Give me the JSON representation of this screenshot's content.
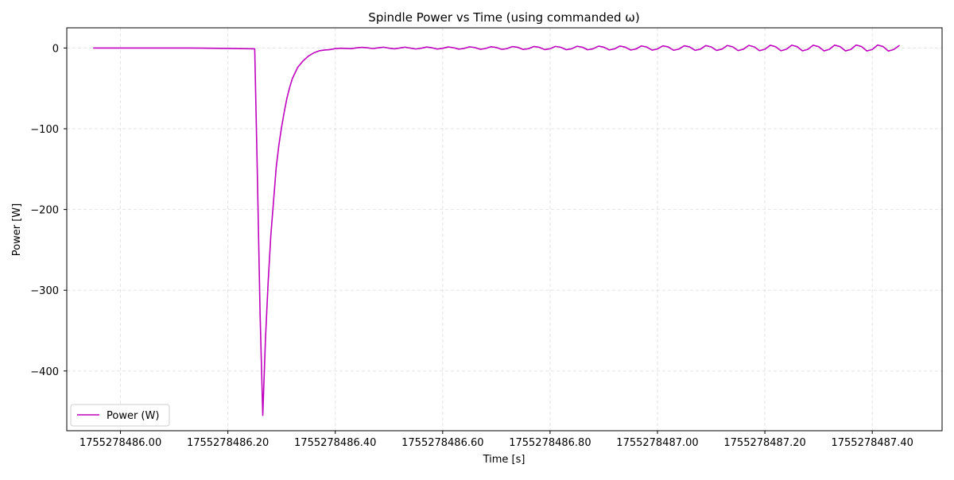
{
  "chart_data": {
    "type": "line",
    "title": "Spindle Power vs Time (using commanded ω)",
    "xlabel": "Time [s]",
    "ylabel": "Power [W]",
    "xlim": [
      1755278485.9,
      1755278487.53
    ],
    "ylim": [
      -474,
      25
    ],
    "xticks": [
      1755278486.0,
      1755278486.2,
      1755278486.4,
      1755278486.6,
      1755278486.8,
      1755278487.0,
      1755278487.2,
      1755278487.4
    ],
    "xtick_labels": [
      "1755278486.00",
      "1755278486.20",
      "1755278486.40",
      "1755278486.60",
      "1755278486.80",
      "1755278487.00",
      "1755278487.20",
      "1755278487.40"
    ],
    "yticks": [
      0,
      -100,
      -200,
      -300,
      -400
    ],
    "ytick_labels": [
      "0",
      "−100",
      "−200",
      "−300",
      "−400"
    ],
    "grid": true,
    "legend_position": "lower-left",
    "series": [
      {
        "name": "Power (W)",
        "color": "#bf00bf",
        "x": [
          1755278485.95,
          1755278486.05,
          1755278486.13,
          1755278486.2,
          1755278486.25,
          1755278486.255,
          1755278486.26,
          1755278486.265,
          1755278486.27,
          1755278486.275,
          1755278486.28,
          1755278486.285,
          1755278486.29,
          1755278486.295,
          1755278486.3,
          1755278486.305,
          1755278486.31,
          1755278486.315,
          1755278486.32,
          1755278486.325,
          1755278486.33,
          1755278486.335,
          1755278486.34,
          1755278486.35,
          1755278486.36,
          1755278486.37,
          1755278486.38,
          1755278486.39,
          1755278486.4,
          1755278486.41,
          1755278486.42,
          1755278486.43,
          1755278486.44,
          1755278486.45,
          1755278486.46,
          1755278486.47,
          1755278486.48,
          1755278486.49,
          1755278486.5,
          1755278486.51,
          1755278486.52,
          1755278486.53,
          1755278486.54,
          1755278486.55,
          1755278486.56,
          1755278486.57,
          1755278486.58,
          1755278486.59,
          1755278486.6,
          1755278486.61,
          1755278486.62,
          1755278486.63,
          1755278486.64,
          1755278486.65,
          1755278486.66,
          1755278486.67,
          1755278486.68,
          1755278486.69,
          1755278486.7,
          1755278486.71,
          1755278486.72,
          1755278486.73,
          1755278486.74,
          1755278486.75,
          1755278486.76,
          1755278486.77,
          1755278486.78,
          1755278486.79,
          1755278486.8,
          1755278486.81,
          1755278486.82,
          1755278486.83,
          1755278486.84,
          1755278486.85,
          1755278486.86,
          1755278486.87,
          1755278486.88,
          1755278486.89,
          1755278486.9,
          1755278486.91,
          1755278486.92,
          1755278486.93,
          1755278486.94,
          1755278486.95,
          1755278486.96,
          1755278486.97,
          1755278486.98,
          1755278486.99,
          1755278487.0,
          1755278487.01,
          1755278487.02,
          1755278487.03,
          1755278487.04,
          1755278487.05,
          1755278487.06,
          1755278487.07,
          1755278487.08,
          1755278487.09,
          1755278487.1,
          1755278487.11,
          1755278487.12,
          1755278487.13,
          1755278487.14,
          1755278487.15,
          1755278487.16,
          1755278487.17,
          1755278487.18,
          1755278487.19,
          1755278487.2,
          1755278487.21,
          1755278487.22,
          1755278487.23,
          1755278487.24,
          1755278487.25,
          1755278487.26,
          1755278487.27,
          1755278487.28,
          1755278487.29,
          1755278487.3,
          1755278487.31,
          1755278487.32,
          1755278487.33,
          1755278487.34,
          1755278487.35,
          1755278487.36,
          1755278487.37,
          1755278487.38,
          1755278487.39,
          1755278487.4,
          1755278487.41,
          1755278487.42,
          1755278487.43,
          1755278487.44,
          1755278487.45
        ],
        "y": [
          0,
          0,
          0,
          -0.5,
          -1,
          -160,
          -330,
          -455,
          -360,
          -290,
          -232,
          -190,
          -148,
          -120,
          -98,
          -79,
          -62,
          -49,
          -38,
          -31,
          -24,
          -20,
          -16,
          -10,
          -6,
          -3.5,
          -2.5,
          -2,
          -0.8,
          -0.3,
          -0.5,
          -0.8,
          0.2,
          0.8,
          0.2,
          -0.7,
          0.2,
          1.0,
          -0.2,
          -1.0,
          0.0,
          1.0,
          -0.2,
          -1.2,
          -0.3,
          1.2,
          0.3,
          -1.3,
          -0.4,
          1.3,
          0.4,
          -1.4,
          -0.5,
          1.5,
          0.5,
          -1.6,
          -0.6,
          1.6,
          0.6,
          -1.7,
          -0.7,
          1.8,
          0.8,
          -1.8,
          -0.8,
          1.9,
          0.8,
          -2.0,
          -0.9,
          2.0,
          0.9,
          -2.1,
          -1.0,
          2.2,
          1.0,
          -2.2,
          -1.0,
          2.3,
          1.1,
          -2.4,
          -1.1,
          2.4,
          1.1,
          -2.5,
          -1.2,
          2.6,
          1.2,
          -2.6,
          -1.2,
          2.7,
          1.3,
          -2.8,
          -1.3,
          2.8,
          1.3,
          -2.9,
          -1.4,
          3.0,
          1.4,
          -3.0,
          -1.4,
          3.1,
          1.5,
          -3.2,
          -1.5,
          3.2,
          1.5,
          -3.3,
          -1.6,
          3.4,
          1.6,
          -3.4,
          -1.6,
          3.5,
          1.7,
          -3.5,
          -1.7,
          3.5,
          1.7,
          -3.6,
          -1.7,
          3.6,
          1.7,
          -3.6,
          -1.8,
          3.7,
          1.8,
          -3.7,
          -1.8,
          3.7,
          1.8,
          -3.8,
          -1.8,
          3.0
        ]
      }
    ]
  }
}
